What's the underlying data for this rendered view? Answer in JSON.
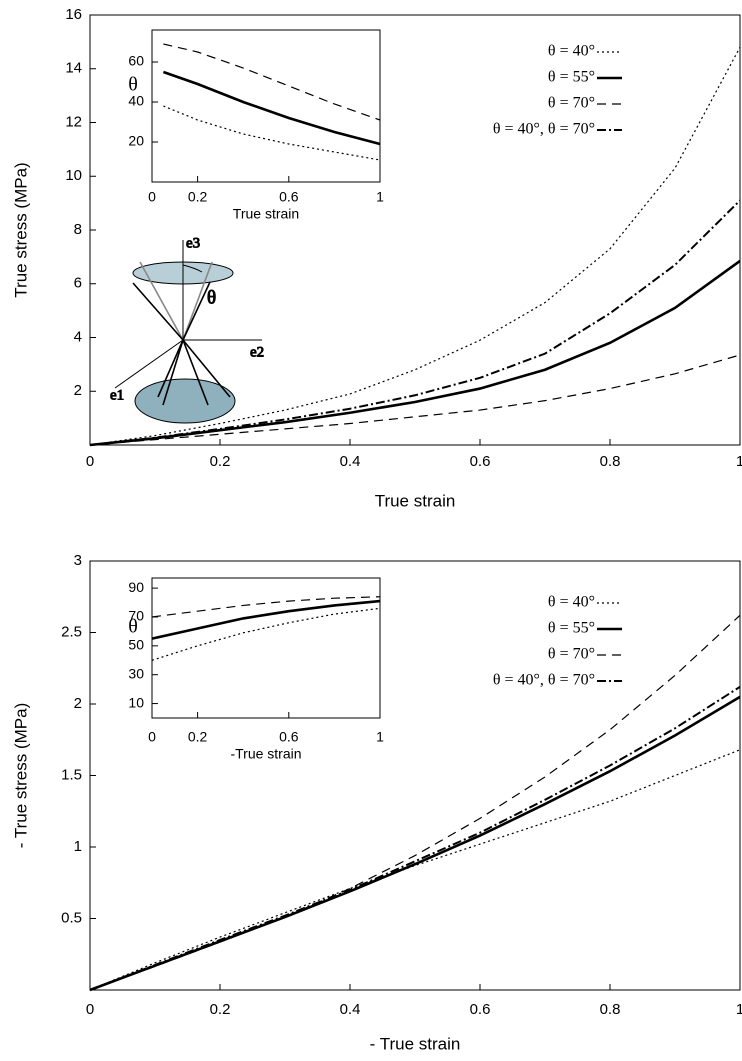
{
  "chart_data": [
    {
      "type": "line",
      "x_label": "True strain",
      "y_label": "True stress (MPa)",
      "xlim": [
        0,
        1
      ],
      "ylim": [
        0,
        16
      ],
      "xticks": [
        0,
        0.2,
        0.4,
        0.6,
        0.8,
        1
      ],
      "yticks": [
        2,
        4,
        6,
        8,
        10,
        12,
        14,
        16
      ],
      "legend": "upper right",
      "annotations": [
        "e3",
        "e2",
        "e1",
        "θ"
      ],
      "x": [
        0,
        0.1,
        0.2,
        0.3,
        0.4,
        0.5,
        0.6,
        0.7,
        0.8,
        0.9,
        1
      ],
      "series": [
        {
          "name": "θ = 40°",
          "color": "#000000",
          "dash": "dotted",
          "values": [
            0,
            0.35,
            0.8,
            1.3,
            1.9,
            2.8,
            3.9,
            5.3,
            7.3,
            10.3,
            14.8
          ]
        },
        {
          "name": "θ = 55°",
          "color": "#000000",
          "dash": "solid",
          "values": [
            0,
            0.25,
            0.55,
            0.85,
            1.2,
            1.6,
            2.1,
            2.8,
            3.8,
            5.1,
            6.85
          ]
        },
        {
          "name": "θ = 70°",
          "color": "#000000",
          "dash": "dashed",
          "values": [
            0,
            0.2,
            0.4,
            0.6,
            0.8,
            1.05,
            1.3,
            1.65,
            2.1,
            2.65,
            3.35
          ]
        },
        {
          "name": "θ = 40°, θ = 70°",
          "color": "#000000",
          "dash": "dashdot",
          "values": [
            0,
            0.27,
            0.6,
            0.95,
            1.35,
            1.85,
            2.5,
            3.4,
            4.9,
            6.7,
            9.1
          ]
        }
      ]
    },
    {
      "type": "line",
      "x_label": "True strain",
      "y_label": "θ",
      "xlim": [
        0,
        1
      ],
      "ylim": [
        0,
        76
      ],
      "xticks": [
        0,
        0.2,
        0.6,
        1
      ],
      "yticks": [
        20,
        40,
        60
      ],
      "x": [
        0.05,
        0.2,
        0.4,
        0.6,
        0.8,
        1
      ],
      "series": [
        {
          "color": "#000000",
          "dash": "dotted",
          "values": [
            38,
            31,
            24,
            19,
            15,
            11
          ]
        },
        {
          "color": "#000000",
          "dash": "solid",
          "values": [
            55,
            49,
            40,
            32,
            25,
            19
          ]
        },
        {
          "color": "#000000",
          "dash": "dashed",
          "values": [
            69,
            65,
            57,
            48,
            39,
            31
          ]
        }
      ]
    },
    {
      "type": "line",
      "x_label": "- True strain",
      "y_label": "- True stress (MPa)",
      "xlim": [
        0,
        1
      ],
      "ylim": [
        0,
        3
      ],
      "xticks": [
        0,
        0.2,
        0.4,
        0.6,
        0.8,
        1
      ],
      "yticks": [
        0.5,
        1,
        1.5,
        2,
        2.5,
        3
      ],
      "legend": "upper right",
      "x": [
        0,
        0.1,
        0.2,
        0.3,
        0.4,
        0.5,
        0.6,
        0.7,
        0.8,
        0.9,
        1
      ],
      "series": [
        {
          "name": "θ = 40°",
          "color": "#000000",
          "dash": "dotted",
          "values": [
            0,
            0.19,
            0.37,
            0.54,
            0.71,
            0.87,
            1.02,
            1.17,
            1.32,
            1.5,
            1.68
          ]
        },
        {
          "name": "θ = 55°",
          "color": "#000000",
          "dash": "solid",
          "values": [
            0,
            0.17,
            0.34,
            0.51,
            0.69,
            0.88,
            1.08,
            1.3,
            1.53,
            1.78,
            2.05
          ]
        },
        {
          "name": "θ = 70°",
          "color": "#000000",
          "dash": "dashed",
          "values": [
            0,
            0.165,
            0.335,
            0.51,
            0.71,
            0.94,
            1.2,
            1.49,
            1.82,
            2.2,
            2.62
          ]
        },
        {
          "name": "θ = 40°, θ = 70°",
          "color": "#000000",
          "dash": "dashdot",
          "values": [
            0,
            0.175,
            0.35,
            0.52,
            0.7,
            0.9,
            1.1,
            1.33,
            1.57,
            1.83,
            2.12
          ]
        }
      ]
    },
    {
      "type": "line",
      "x_label": "-True strain",
      "y_label": "θ",
      "xlim": [
        0,
        1
      ],
      "ylim": [
        0,
        97
      ],
      "xticks": [
        0,
        0.2,
        0.6,
        1
      ],
      "yticks": [
        10,
        30,
        50,
        70,
        90
      ],
      "x": [
        0,
        0.2,
        0.4,
        0.6,
        0.8,
        1
      ],
      "series": [
        {
          "color": "#000000",
          "dash": "dotted",
          "values": [
            40,
            50,
            59,
            66,
            72,
            76
          ]
        },
        {
          "color": "#000000",
          "dash": "solid",
          "values": [
            55,
            62,
            69,
            74,
            78,
            81
          ]
        },
        {
          "color": "#000000",
          "dash": "dashed",
          "values": [
            70,
            74,
            78,
            81,
            83,
            84
          ]
        }
      ]
    }
  ]
}
